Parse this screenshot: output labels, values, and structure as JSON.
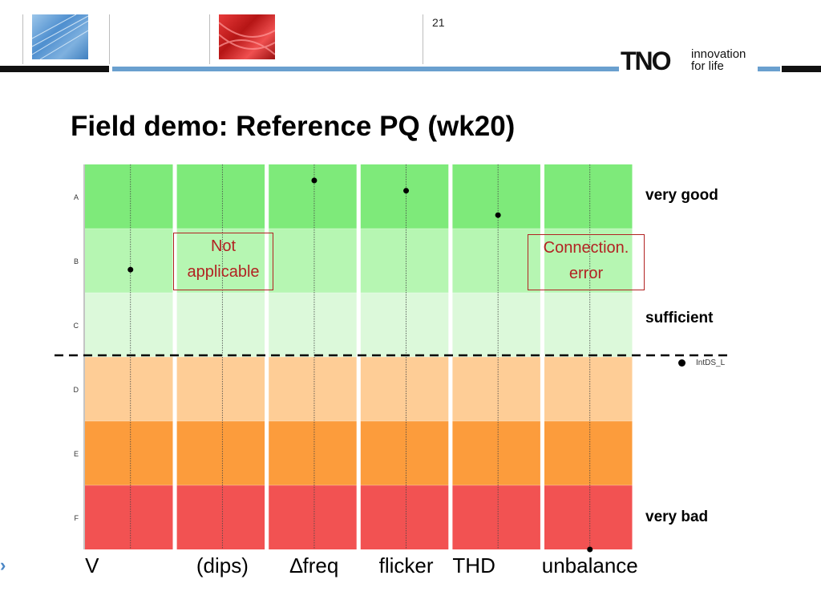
{
  "header": {
    "slide_number": "21",
    "logo_text": "TNO",
    "tagline_line1": "innovation",
    "tagline_line2": "for life",
    "thumbnail_1": "blue-wires-image",
    "thumbnail_2": "red-cables-image",
    "colors": {
      "dark_bar": "#111111",
      "blue_bar": "#6aa0cf"
    }
  },
  "title": "Field demo: Reference PQ (wk20)",
  "chart_data": {
    "type": "scatter",
    "categories": [
      "V",
      "(dips)",
      "∆freq",
      "flicker",
      "THD",
      "unbalance"
    ],
    "levels": [
      "A",
      "B",
      "C",
      "D",
      "E",
      "F"
    ],
    "level_colors": [
      "#7eea7a",
      "#b6f6b2",
      "#dcf9da",
      "#fecd96",
      "#fc9c3c",
      "#f25252"
    ],
    "points": [
      {
        "category": "V",
        "level": "B",
        "value": 1.64
      },
      {
        "category": "∆freq",
        "level": "A",
        "value": 0.25
      },
      {
        "category": "flicker",
        "level": "A",
        "value": 0.41
      },
      {
        "category": "THD",
        "level": "A",
        "value": 0.79
      },
      {
        "category": "unbalance",
        "level": "F",
        "value": 6.0
      }
    ],
    "threshold": {
      "value": 3.0,
      "style": "dashed",
      "legend": "IntDS_L"
    },
    "ylim": [
      0,
      6
    ],
    "side_labels": {
      "top": "very good",
      "middle": "sufficient",
      "bottom": "very bad"
    },
    "annotations": [
      {
        "text_line1": "Not",
        "text_line2": "applicable",
        "category": "(dips)"
      },
      {
        "text_line1": "Connection.",
        "text_line2": "error",
        "category": "unbalance"
      }
    ],
    "grid": true
  }
}
